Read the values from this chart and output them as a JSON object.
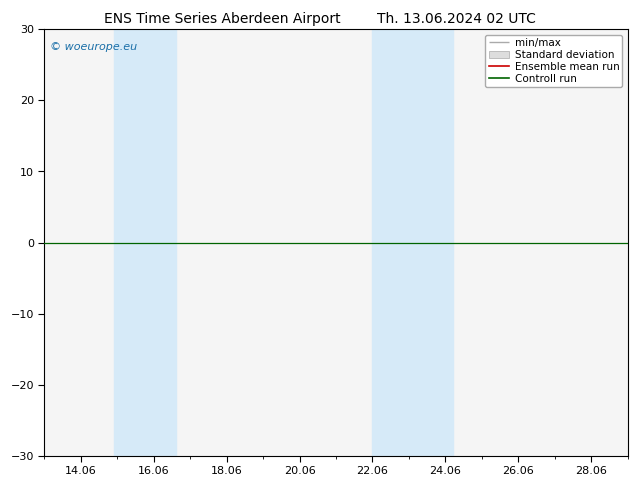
{
  "title_left": "ENS Time Series Aberdeen Airport",
  "title_right": "Th. 13.06.2024 02 UTC",
  "ylim": [
    -30,
    30
  ],
  "yticks": [
    -30,
    -20,
    -10,
    0,
    10,
    20,
    30
  ],
  "xlim": [
    13.0,
    29.0
  ],
  "xtick_labels": [
    "14.06",
    "16.06",
    "18.06",
    "20.06",
    "22.06",
    "24.06",
    "26.06",
    "28.06"
  ],
  "xtick_positions": [
    14,
    16,
    18,
    20,
    22,
    24,
    26,
    28
  ],
  "shade_bands": [
    {
      "start": 14.9,
      "end": 16.6
    },
    {
      "start": 22.0,
      "end": 24.2
    }
  ],
  "shade_color": "#d6eaf8",
  "watermark": "© woeurope.eu",
  "watermark_color": "#1a6fa8",
  "zero_line_color": "#006400",
  "legend_items": [
    {
      "label": "min/max",
      "color": "#aaaaaa",
      "type": "errorbar"
    },
    {
      "label": "Standard deviation",
      "color": "#cccccc",
      "type": "box"
    },
    {
      "label": "Ensemble mean run",
      "color": "#cc0000",
      "type": "line"
    },
    {
      "label": "Controll run",
      "color": "#006400",
      "type": "line"
    }
  ],
  "bg_color": "#ffffff",
  "plot_bg_color": "#f5f5f5",
  "title_fontsize": 10,
  "tick_fontsize": 8,
  "legend_fontsize": 7.5
}
